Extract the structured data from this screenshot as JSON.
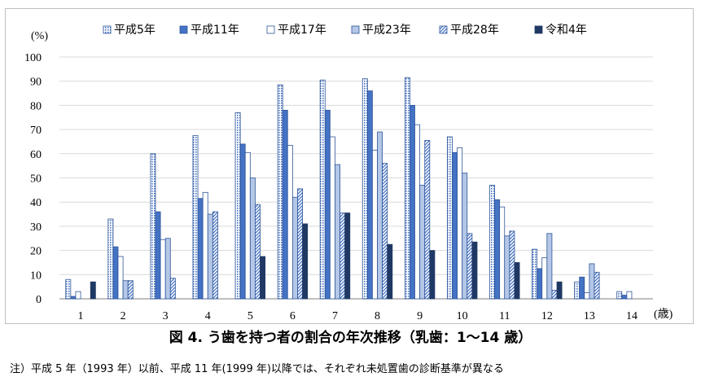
{
  "chart_data": {
    "type": "bar",
    "title": "",
    "ylabel": "(%)",
    "xlabel": "(歳)",
    "ylim": [
      0,
      100
    ],
    "yticks": [
      "0",
      "10",
      "20",
      "30",
      "40",
      "50",
      "60",
      "70",
      "80",
      "90",
      "100"
    ],
    "categories": [
      "1",
      "2",
      "3",
      "4",
      "5",
      "6",
      "7",
      "8",
      "9",
      "10",
      "11",
      "12",
      "13",
      "14"
    ],
    "legend_position": "top",
    "series": [
      {
        "name": "平成5年",
        "pattern": "dots",
        "color": "#6f8fc5",
        "values": [
          8,
          33,
          60,
          67.5,
          77,
          88.5,
          90.5,
          91,
          91.5,
          67,
          47,
          20.5,
          7,
          3
        ]
      },
      {
        "name": "平成11年",
        "pattern": "solid",
        "color": "#4472c4",
        "values": [
          1,
          21.5,
          36,
          41.5,
          64,
          78,
          78,
          86,
          80,
          60.5,
          41,
          12.5,
          9,
          1.5
        ]
      },
      {
        "name": "平成17年",
        "pattern": "white",
        "color": "#ffffff",
        "values": [
          3,
          17.5,
          24.5,
          44,
          60.5,
          63.5,
          67,
          61.5,
          72,
          62.5,
          38,
          17,
          2.5,
          3
        ]
      },
      {
        "name": "平成23年",
        "pattern": "light",
        "color": "#b4c7e7",
        "values": [
          0,
          7.5,
          25,
          35,
          50,
          42,
          55.5,
          69,
          47,
          52,
          26,
          27,
          14.5,
          0
        ]
      },
      {
        "name": "平成28年",
        "pattern": "diagonal",
        "color": "#4472c4",
        "values": [
          0,
          7.5,
          8.5,
          36,
          39,
          45.5,
          35.5,
          56,
          65.5,
          27,
          28,
          3.5,
          11,
          0
        ]
      },
      {
        "name": "令和4年",
        "pattern": "solid-dark",
        "color": "#203864",
        "values": [
          7,
          0,
          0,
          0,
          17.5,
          31,
          35.5,
          22.5,
          20,
          23.5,
          15,
          7,
          0,
          0
        ]
      }
    ]
  },
  "caption": "図 4.  う歯を持つ者の割合の年次推移（乳歯：1～14 歳）",
  "note": "注）平成 5 年（1993 年）以前、平成 11 年(1999 年)以降では、それぞれ未処置歯の診断基準が異なる"
}
